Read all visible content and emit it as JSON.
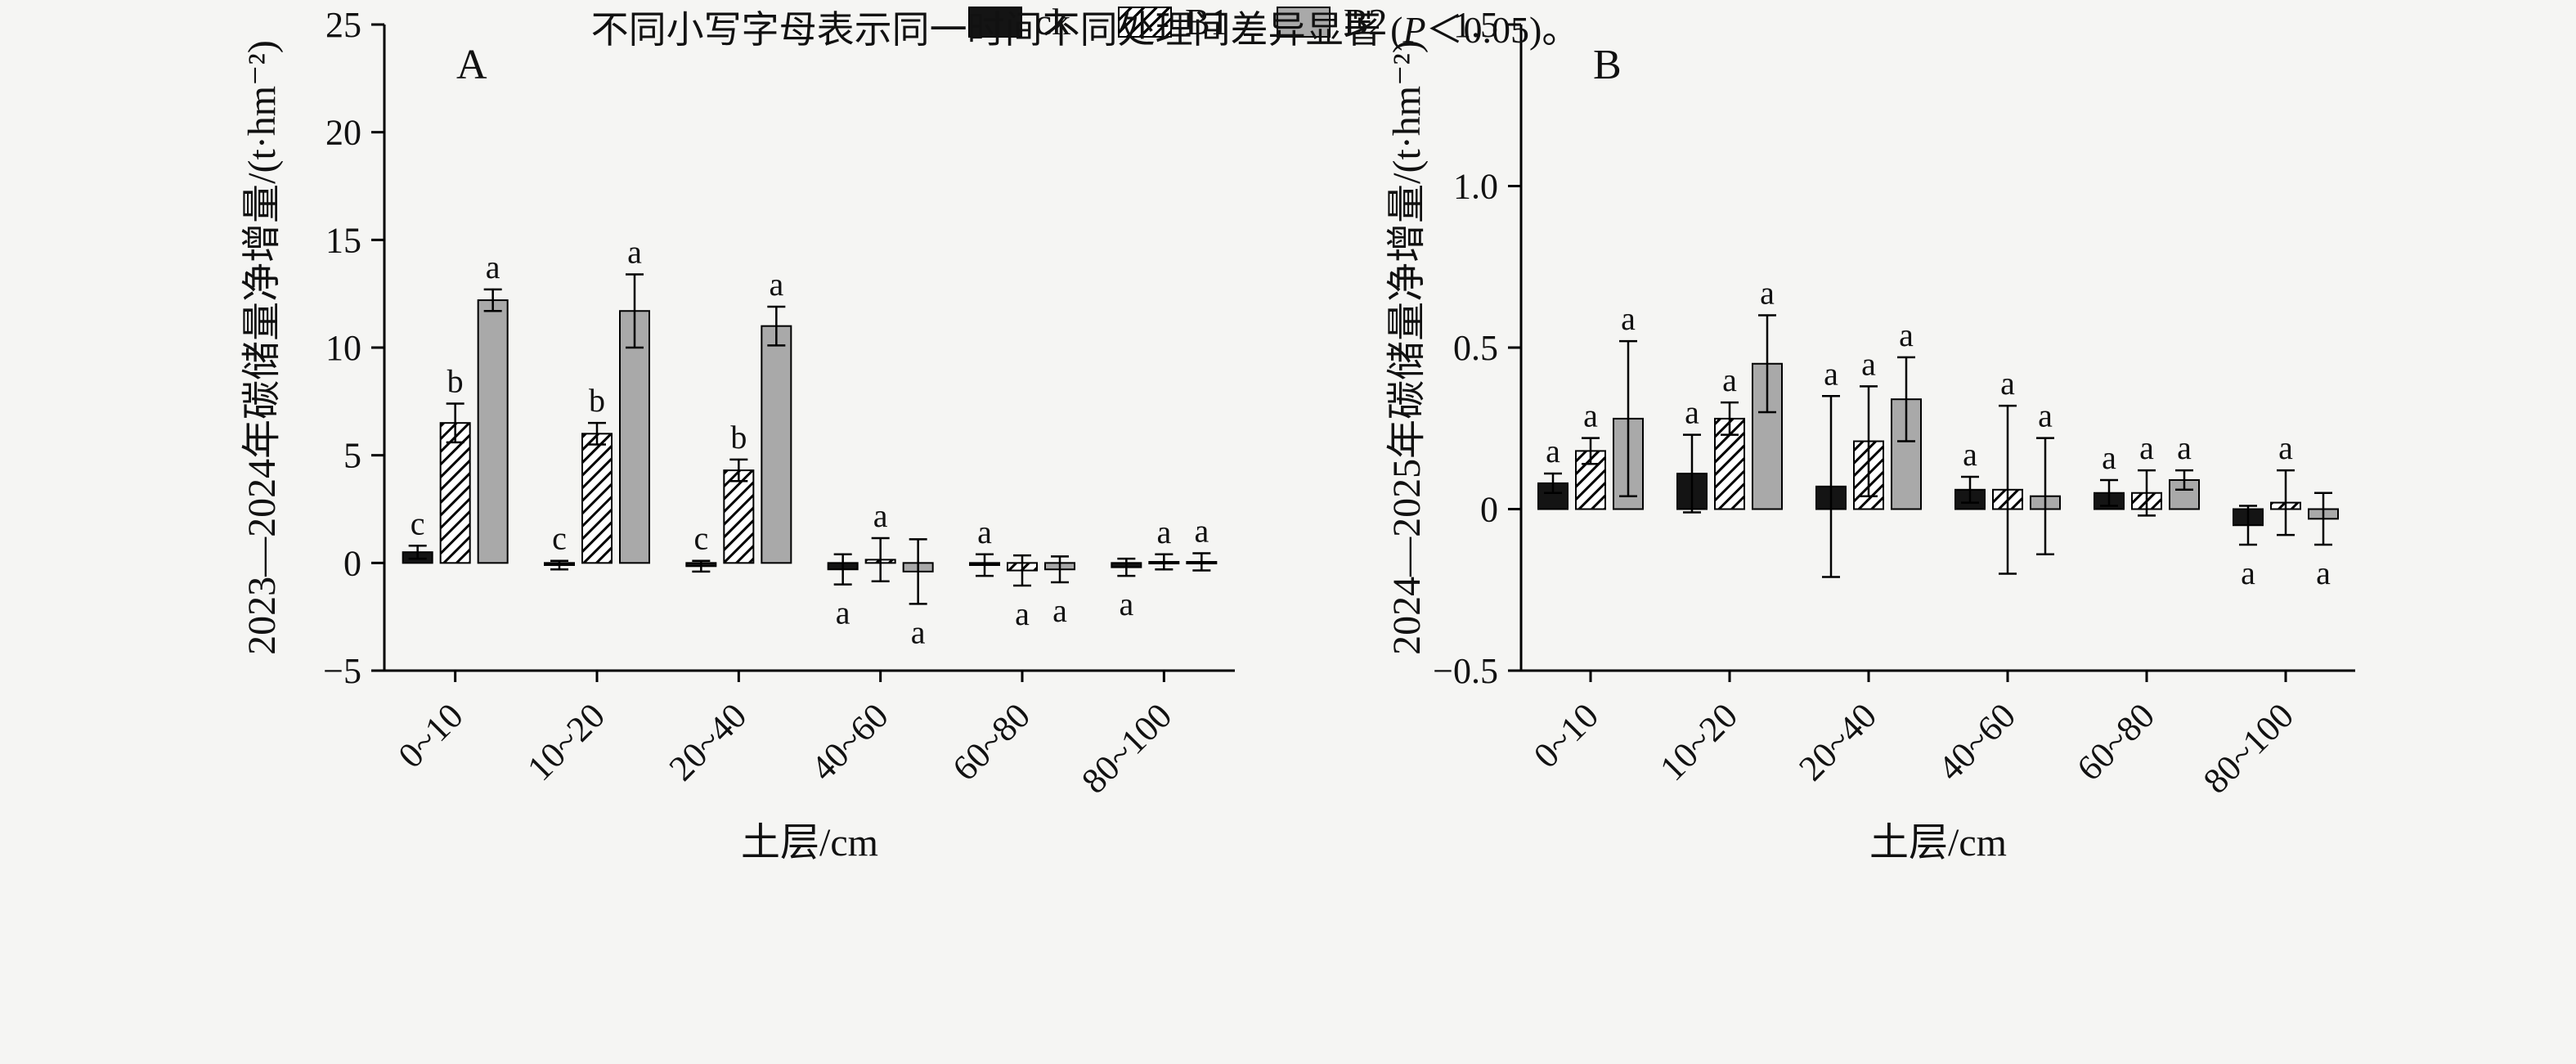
{
  "figure": {
    "background": "#f5f5f3",
    "colors": {
      "ck": "#141414",
      "b1_hatch_line": "#000000",
      "b2": "#a9a9a9",
      "axis": "#000000"
    }
  },
  "legend": {
    "items": [
      {
        "label": "ck",
        "style": "solid-black"
      },
      {
        "label": "B1",
        "style": "diagonal-hatch"
      },
      {
        "label": "B2",
        "style": "solid-gray"
      }
    ]
  },
  "caption": {
    "prefix": "不同小写字母表示同一时间不同处理间差异显著 (",
    "italic": "P",
    "suffix": "＜0.05)。"
  },
  "chart_data": [
    {
      "type": "bar",
      "panel": "A",
      "title": "",
      "ylabel": "2023—2024年碳储量净增量/(t·hm⁻²)",
      "xlabel": "土层/cm",
      "ylim": [
        -5,
        25
      ],
      "yticks": [
        {
          "v": -5,
          "label": "−5"
        },
        {
          "v": 0,
          "label": "0"
        },
        {
          "v": 5,
          "label": "5"
        },
        {
          "v": 10,
          "label": "10"
        },
        {
          "v": 15,
          "label": "15"
        },
        {
          "v": 20,
          "label": "20"
        },
        {
          "v": 25,
          "label": "25"
        }
      ],
      "categories": [
        "0~10",
        "10~20",
        "20~40",
        "40~60",
        "60~80",
        "80~100"
      ],
      "series": [
        {
          "name": "ck",
          "values": [
            0.5,
            -0.1,
            -0.15,
            -0.3,
            -0.1,
            -0.2
          ],
          "errors": [
            0.3,
            0.2,
            0.25,
            0.7,
            0.5,
            0.4
          ],
          "letters": [
            "c",
            "c",
            "c",
            "a",
            "a",
            "a"
          ],
          "letter_pos": [
            "above",
            "above",
            "above",
            "below",
            "above",
            "below"
          ]
        },
        {
          "name": "B1",
          "values": [
            6.5,
            6.0,
            4.3,
            0.15,
            -0.35,
            0.05
          ],
          "errors": [
            0.9,
            0.5,
            0.5,
            1.0,
            0.7,
            0.35
          ],
          "letters": [
            "b",
            "b",
            "b",
            "a",
            "a",
            "a"
          ],
          "letter_pos": [
            "above",
            "above",
            "above",
            "above",
            "below",
            "above"
          ]
        },
        {
          "name": "B2",
          "values": [
            12.2,
            11.7,
            11.0,
            -0.4,
            -0.3,
            0.05
          ],
          "errors": [
            0.5,
            1.7,
            0.9,
            1.5,
            0.6,
            0.4
          ],
          "letters": [
            "a",
            "a",
            "a",
            "a",
            "a",
            "a"
          ],
          "letter_pos": [
            "above",
            "above",
            "above",
            "below",
            "below",
            "above"
          ]
        }
      ],
      "legend_position": "none",
      "grid": false
    },
    {
      "type": "bar",
      "panel": "B",
      "title": "",
      "ylabel": "2024—2025年碳储量净增量/(t·hm⁻²)",
      "xlabel": "土层/cm",
      "ylim": [
        -0.5,
        1.5
      ],
      "yticks": [
        {
          "v": -0.5,
          "label": "−0.5"
        },
        {
          "v": 0,
          "label": "0"
        },
        {
          "v": 0.5,
          "label": "0.5"
        },
        {
          "v": 1.0,
          "label": "1.0"
        },
        {
          "v": 1.5,
          "label": "1.5"
        }
      ],
      "categories": [
        "0~10",
        "10~20",
        "20~40",
        "40~60",
        "60~80",
        "80~100"
      ],
      "series": [
        {
          "name": "ck",
          "values": [
            0.08,
            0.11,
            0.07,
            0.06,
            0.05,
            -0.05
          ],
          "errors": [
            0.03,
            0.12,
            0.28,
            0.04,
            0.04,
            0.06
          ],
          "letters": [
            "a",
            "a",
            "a",
            "a",
            "a",
            "a"
          ],
          "letter_pos": [
            "above",
            "above",
            "above",
            "above",
            "above",
            "below"
          ]
        },
        {
          "name": "B1",
          "values": [
            0.18,
            0.28,
            0.21,
            0.06,
            0.05,
            0.02
          ],
          "errors": [
            0.04,
            0.05,
            0.17,
            0.26,
            0.07,
            0.1
          ],
          "letters": [
            "a",
            "a",
            "a",
            "a",
            "a",
            "a"
          ],
          "letter_pos": [
            "above",
            "above",
            "above",
            "above",
            "above",
            "above"
          ]
        },
        {
          "name": "B2",
          "values": [
            0.28,
            0.45,
            0.34,
            0.04,
            0.09,
            -0.03
          ],
          "errors": [
            0.24,
            0.15,
            0.13,
            0.18,
            0.03,
            0.08
          ],
          "letters": [
            "a",
            "a",
            "a",
            "a",
            "a",
            "a"
          ],
          "letter_pos": [
            "above",
            "above",
            "above",
            "above",
            "above",
            "below"
          ]
        }
      ],
      "legend_position": "none",
      "grid": false
    }
  ]
}
